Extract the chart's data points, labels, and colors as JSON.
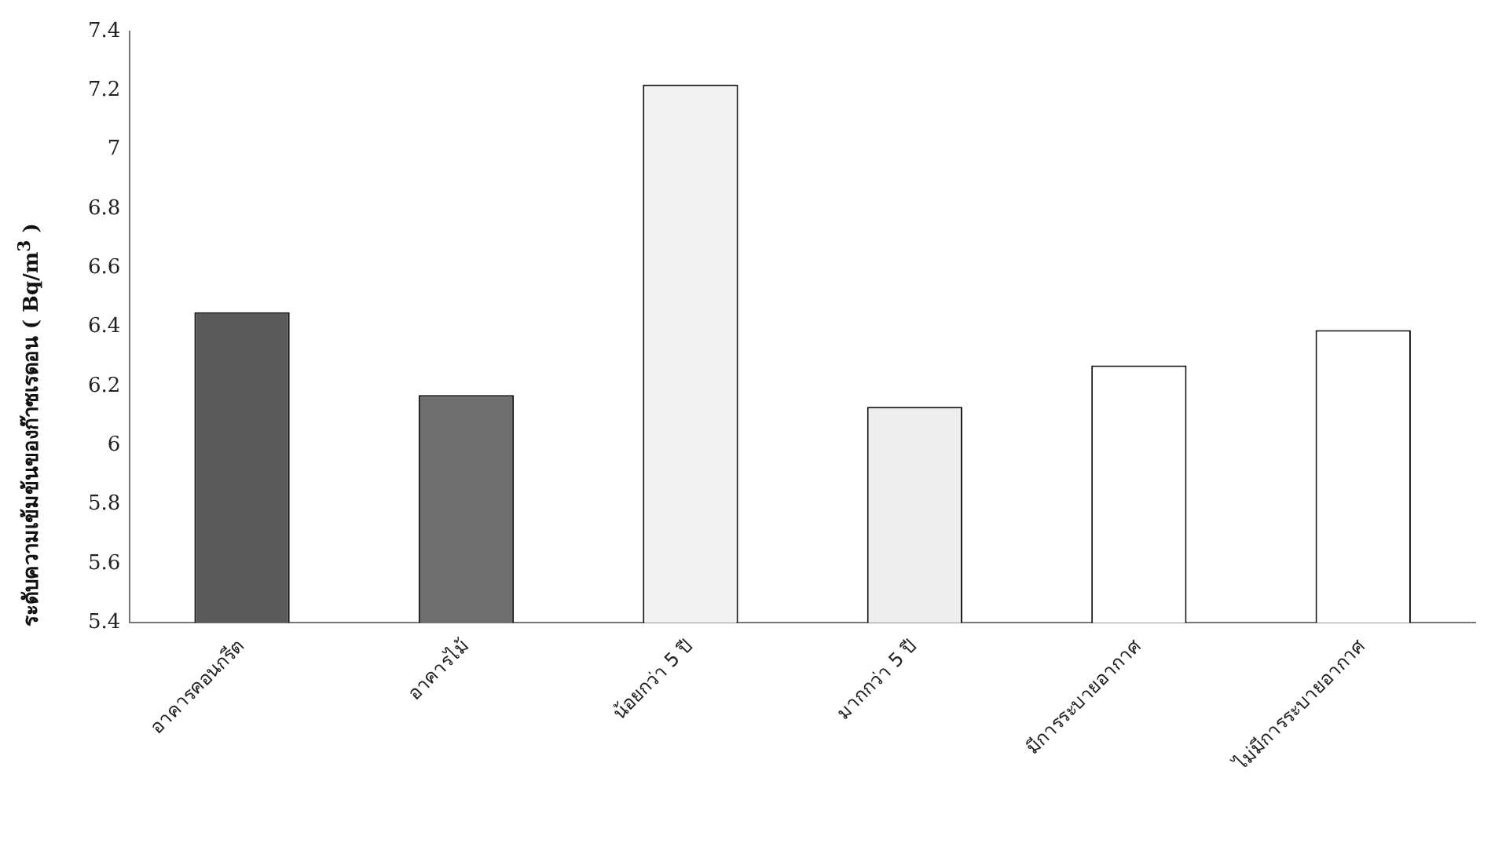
{
  "chart_data": {
    "type": "bar",
    "ylabel": "ระดับความเข้มข้นของก๊าซเรดอน ( Bq/m$^{3}$ )",
    "categories": [
      "อาคารคอนกรีต",
      "อาคารไม้",
      "น้อยกว่า 5 ปี",
      "มากกว่า 5 ปี",
      "มีการระบายอากาศ",
      "ไม่มีการระบายอากาศ"
    ],
    "values": [
      6.45,
      6.17,
      7.22,
      6.13,
      6.27,
      6.39
    ],
    "colors": [
      "#5a5a5a",
      "#6e6e6e",
      "#f2f2f2",
      "#eeeeee",
      "#ffffff",
      "#ffffff"
    ],
    "ylim": [
      5.4,
      7.4
    ],
    "yticks": [
      5.4,
      5.6,
      5.8,
      6,
      6.2,
      6.4,
      6.6,
      6.8,
      7,
      7.2,
      7.4
    ],
    "grid": false,
    "legend": false
  }
}
